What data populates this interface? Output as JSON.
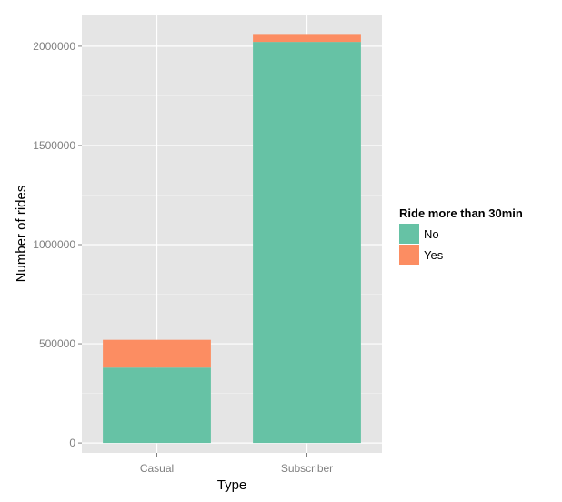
{
  "chart_data": {
    "type": "bar",
    "stacked": true,
    "categories": [
      "Casual",
      "Subscriber"
    ],
    "series": [
      {
        "name": "No",
        "values": [
          380000,
          2022000
        ],
        "color": "#66c2a5"
      },
      {
        "name": "Yes",
        "values": [
          140000,
          40000
        ],
        "color": "#fc8d62"
      }
    ],
    "xlabel": "Type",
    "ylabel": "Number of rides",
    "ylim": [
      -50000,
      2160000
    ],
    "yticks": [
      0,
      500000,
      1000000,
      1500000,
      2000000
    ],
    "ytick_labels": [
      "0",
      "500000",
      "1000000",
      "1500000",
      "2000000"
    ],
    "legend": {
      "title": "Ride more than 30min",
      "position": "right"
    },
    "grid": true,
    "panel_background": "#e5e5e5",
    "grid_color": "#ffffff"
  }
}
